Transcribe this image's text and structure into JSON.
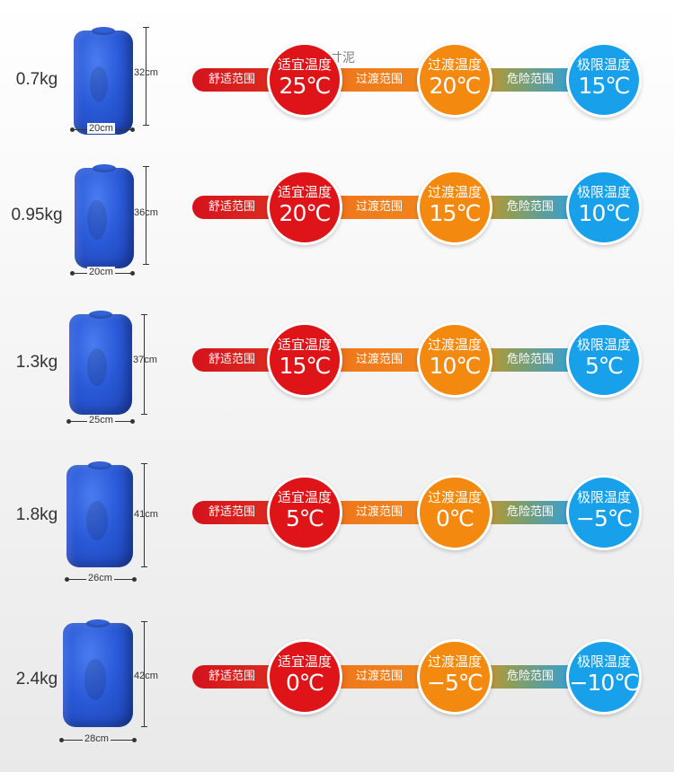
{
  "watermark": "后寸泥",
  "bar_labels": {
    "comfort": "舒适范围",
    "transition": "过渡范围",
    "danger": "危险范围"
  },
  "circle_labels": {
    "suitable": "适宜温度",
    "transition": "过渡温度",
    "limit": "极限温度"
  },
  "colors": {
    "suitable": "#de1419",
    "transition": "#f4890f",
    "limit": "#18a1ea",
    "bag": "#2a5ad8"
  },
  "rows": [
    {
      "weight": "0.7kg",
      "height": "32cm",
      "width": "20cm",
      "suitable_temp": "25℃",
      "transition_temp": "20℃",
      "limit_temp": "15℃"
    },
    {
      "weight": "0.95kg",
      "height": "36cm",
      "width": "20cm",
      "suitable_temp": "20℃",
      "transition_temp": "15℃",
      "limit_temp": "10℃"
    },
    {
      "weight": "1.3kg",
      "height": "37cm",
      "width": "25cm",
      "suitable_temp": "15℃",
      "transition_temp": "10℃",
      "limit_temp": "5℃"
    },
    {
      "weight": "1.8kg",
      "height": "41cm",
      "width": "26cm",
      "suitable_temp": "5℃",
      "transition_temp": "0℃",
      "limit_temp": "−5℃"
    },
    {
      "weight": "2.4kg",
      "height": "42cm",
      "width": "28cm",
      "suitable_temp": "0℃",
      "transition_temp": "−5℃",
      "limit_temp": "−10℃"
    }
  ]
}
